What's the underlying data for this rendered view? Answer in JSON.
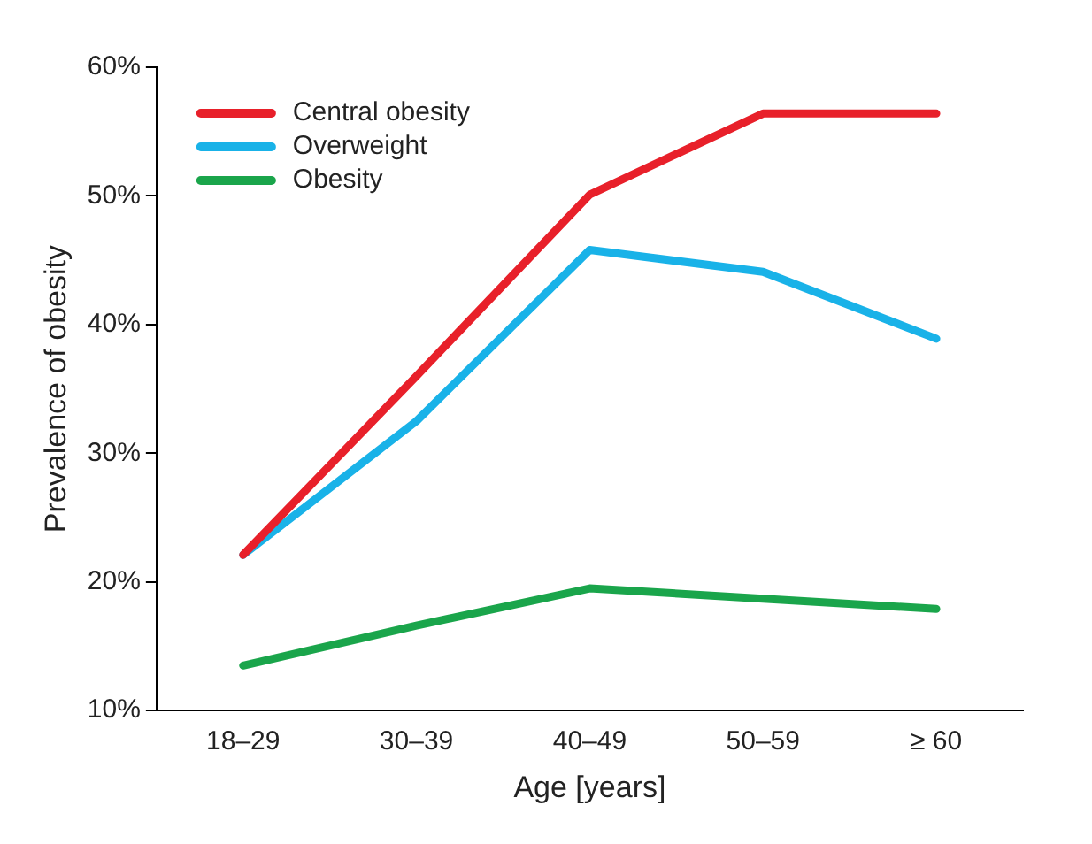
{
  "chart_data": {
    "type": "line",
    "xlabel": "Age [years]",
    "ylabel": "Prevalence of obesity",
    "categories": [
      "18–29",
      "30–39",
      "40–49",
      "50–59",
      "≥ 60"
    ],
    "series": [
      {
        "name": "Central obesity",
        "color": "#e8202a",
        "values": [
          22.1,
          36,
          50.1,
          56.4,
          56.4
        ]
      },
      {
        "name": "Overweight",
        "color": "#19b2e8",
        "values": [
          22.1,
          32.5,
          45.8,
          44.1,
          38.9
        ]
      },
      {
        "name": "Obesity",
        "color": "#1aa54b",
        "values": [
          13.5,
          16.6,
          19.5,
          18.7,
          17.9
        ]
      }
    ],
    "ylim": [
      10,
      60
    ],
    "yticks": [
      {
        "value": 10,
        "label": "10%"
      },
      {
        "value": 20,
        "label": "20%"
      },
      {
        "value": 30,
        "label": "30%"
      },
      {
        "value": 40,
        "label": "40%"
      },
      {
        "value": 50,
        "label": "50%"
      },
      {
        "value": 60,
        "label": "60%"
      }
    ],
    "grid": false,
    "legend": "top left",
    "marker": "none",
    "line_style": "solid"
  }
}
